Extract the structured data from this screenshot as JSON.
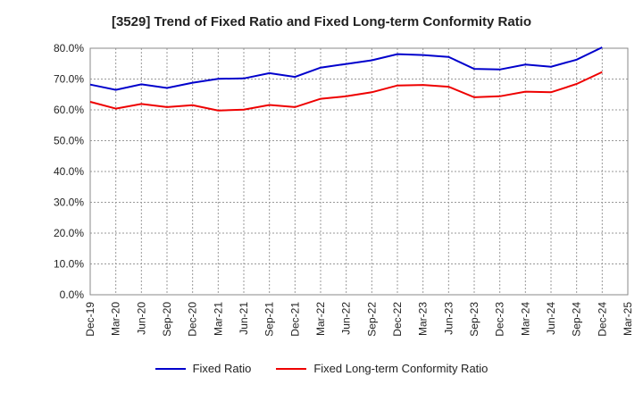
{
  "chart_data": {
    "type": "line",
    "title": "[3529]  Trend of Fixed Ratio and Fixed Long-term Conformity Ratio",
    "xlabel": "",
    "ylabel": "",
    "categories": [
      "Dec-19",
      "Mar-20",
      "Jun-20",
      "Sep-20",
      "Dec-20",
      "Mar-21",
      "Jun-21",
      "Sep-21",
      "Dec-21",
      "Mar-22",
      "Jun-22",
      "Sep-22",
      "Dec-22",
      "Mar-23",
      "Jun-23",
      "Sep-23",
      "Dec-23",
      "Mar-24",
      "Jun-24",
      "Sep-24",
      "Dec-24",
      "Mar-25"
    ],
    "y_tick_labels": [
      "0.0%",
      "10.0%",
      "20.0%",
      "30.0%",
      "40.0%",
      "50.0%",
      "60.0%",
      "70.0%",
      "80.0%"
    ],
    "ylim": [
      0,
      80
    ],
    "grid": true,
    "legend_position": "bottom",
    "series": [
      {
        "name": "Fixed Ratio",
        "color": "#0000cc",
        "values": [
          68.2,
          66.5,
          68.3,
          67.1,
          68.8,
          70.1,
          70.2,
          71.9,
          70.7,
          73.7,
          74.9,
          76.1,
          78.1,
          77.8,
          77.2,
          73.3,
          73.1,
          74.7,
          74.0,
          76.3,
          80.3,
          null
        ]
      },
      {
        "name": "Fixed Long-term Conformity Ratio",
        "color": "#ee0000",
        "values": [
          62.6,
          60.4,
          61.9,
          60.9,
          61.5,
          59.8,
          60.1,
          61.6,
          60.9,
          63.6,
          64.4,
          65.7,
          67.9,
          68.1,
          67.5,
          64.1,
          64.4,
          65.9,
          65.7,
          68.4,
          72.3,
          null
        ]
      }
    ]
  }
}
